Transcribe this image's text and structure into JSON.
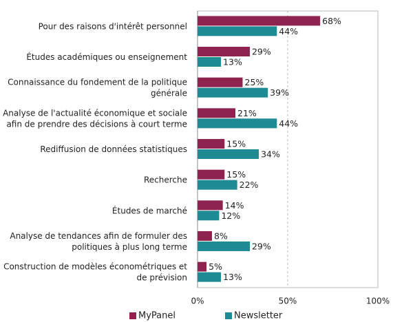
{
  "chart_data": {
    "type": "hbar",
    "categories": [
      "Pour des raisons d'intérêt personnel",
      "Études académiques ou enseignement",
      "Connaissance du fondement de la politique\ngénérale",
      "Analyse de l'actualité économique et sociale\nafin de prendre des décisions à court terme",
      "Rediffusion de données statistiques",
      "Recherche",
      "Études de marché",
      "Analyse de tendances afin de formuler des\npolitiques à plus long terme",
      "Construction de modèles économétriques et\nde prévision"
    ],
    "series": [
      {
        "name": "MyPanel",
        "color": "#8e2350",
        "values": [
          68,
          29,
          25,
          21,
          15,
          15,
          14,
          8,
          5
        ],
        "value_labels": [
          "68%",
          "29%",
          "25%",
          "21%",
          "15%",
          "15%",
          "14%",
          "8%",
          "5%"
        ]
      },
      {
        "name": "Newsletter",
        "color": "#1e8a93",
        "values": [
          44,
          13,
          39,
          44,
          34,
          22,
          12,
          29,
          13
        ],
        "value_labels": [
          "44%",
          "13%",
          "39%",
          "44%",
          "34%",
          "22%",
          "12%",
          "29%",
          "13%"
        ]
      }
    ],
    "xlim": [
      0,
      100
    ],
    "xticks": [
      {
        "value": 0,
        "label": "0%"
      },
      {
        "value": 50,
        "label": "50%"
      },
      {
        "value": 100,
        "label": "100%"
      }
    ],
    "grid": true,
    "legend": "bottom"
  }
}
